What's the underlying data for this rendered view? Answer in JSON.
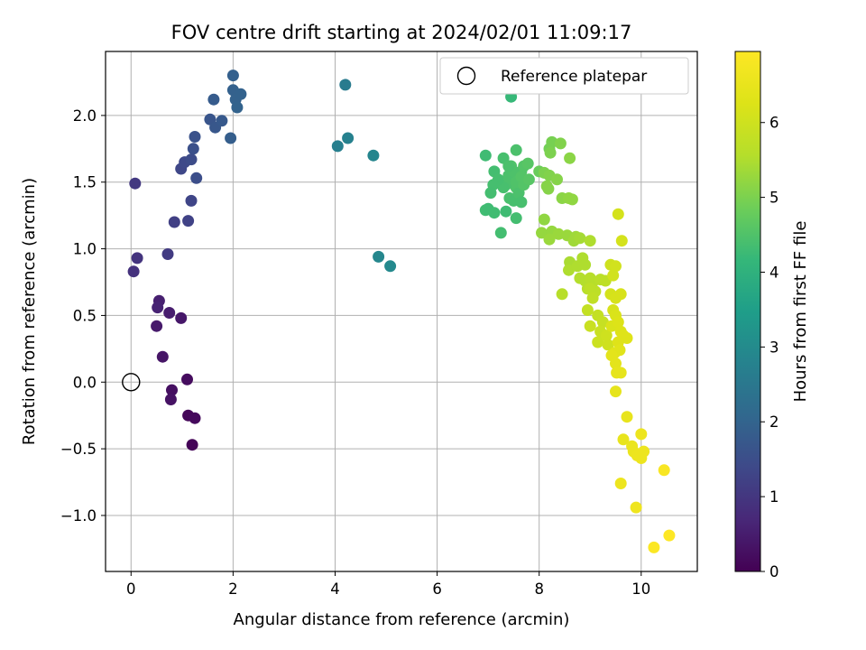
{
  "chart_data": {
    "type": "scatter",
    "title": "FOV centre drift starting at 2024/02/01 11:09:17",
    "xlabel": "Angular distance from reference (arcmin)",
    "ylabel": "Rotation from reference (arcmin)",
    "xlim": [
      -0.5,
      11.1
    ],
    "ylim": [
      -1.42,
      2.48
    ],
    "xticks": [
      0,
      2,
      4,
      6,
      8,
      10
    ],
    "xtick_labels": [
      "0",
      "2",
      "4",
      "6",
      "8",
      "10"
    ],
    "yticks": [
      -1.0,
      -0.5,
      0.0,
      0.5,
      1.0,
      1.5,
      2.0
    ],
    "ytick_labels": [
      "−1.0",
      "−0.5",
      "0.0",
      "0.5",
      "1.0",
      "1.5",
      "2.0"
    ],
    "grid": true,
    "legend": {
      "position": "top-right",
      "entries": [
        "Reference platepar"
      ]
    },
    "colorbar": {
      "label": "Hours from first FF file",
      "range": [
        0,
        6.95
      ],
      "ticks": [
        0,
        1,
        2,
        3,
        4,
        5,
        6
      ],
      "tick_labels": [
        "0",
        "1",
        "2",
        "3",
        "4",
        "5",
        "6"
      ],
      "colormap": "viridis"
    },
    "reference_point": {
      "x": 0,
      "y": 0
    },
    "series": [
      {
        "points": [
          [
            1.2,
            -0.47,
            0.05
          ],
          [
            1.12,
            -0.25,
            0.1
          ],
          [
            1.25,
            -0.27,
            0.15
          ],
          [
            1.1,
            0.02,
            0.2
          ],
          [
            0.8,
            -0.06,
            0.25
          ],
          [
            0.78,
            -0.13,
            0.3
          ],
          [
            0.62,
            0.19,
            0.35
          ],
          [
            0.98,
            0.48,
            0.4
          ],
          [
            0.5,
            0.42,
            0.45
          ],
          [
            0.75,
            0.52,
            0.5
          ],
          [
            0.55,
            0.61,
            0.55
          ],
          [
            0.52,
            0.56,
            0.6
          ],
          [
            0.05,
            0.83,
            0.9
          ],
          [
            0.12,
            0.93,
            0.95
          ],
          [
            0.08,
            1.49,
            1.05
          ],
          [
            0.72,
            0.96,
            1.1
          ],
          [
            0.85,
            1.2,
            1.2
          ],
          [
            1.12,
            1.21,
            1.25
          ],
          [
            1.18,
            1.36,
            1.3
          ],
          [
            0.98,
            1.6,
            1.35
          ],
          [
            1.05,
            1.65,
            1.4
          ],
          [
            1.18,
            1.67,
            1.45
          ],
          [
            1.28,
            1.53,
            1.5
          ],
          [
            1.22,
            1.75,
            1.55
          ],
          [
            1.25,
            1.84,
            1.6
          ],
          [
            1.55,
            1.97,
            1.65
          ],
          [
            1.65,
            1.91,
            1.7
          ],
          [
            1.78,
            1.96,
            1.75
          ],
          [
            1.62,
            2.12,
            1.8
          ],
          [
            1.95,
            1.83,
            1.85
          ],
          [
            2.0,
            2.3,
            1.9
          ],
          [
            2.0,
            2.19,
            1.92
          ],
          [
            2.05,
            2.12,
            1.94
          ],
          [
            2.15,
            2.16,
            1.96
          ],
          [
            2.08,
            2.06,
            1.98
          ],
          [
            4.2,
            2.23,
            2.6
          ],
          [
            4.05,
            1.77,
            2.7
          ],
          [
            4.25,
            1.83,
            2.75
          ],
          [
            4.75,
            1.7,
            2.85
          ],
          [
            4.85,
            0.94,
            2.9
          ],
          [
            5.08,
            0.87,
            2.95
          ],
          [
            7.45,
            2.14,
            4.2
          ],
          [
            6.95,
            1.7,
            4.3
          ],
          [
            7.12,
            1.58,
            4.35
          ],
          [
            7.3,
            1.68,
            4.4
          ],
          [
            7.55,
            1.74,
            4.45
          ],
          [
            7.45,
            1.62,
            4.5
          ],
          [
            7.6,
            1.55,
            4.5
          ],
          [
            7.5,
            1.52,
            4.48
          ],
          [
            7.65,
            1.58,
            4.52
          ],
          [
            7.7,
            1.62,
            4.55
          ],
          [
            7.78,
            1.64,
            4.6
          ],
          [
            7.55,
            1.46,
            4.5
          ],
          [
            7.35,
            1.48,
            4.45
          ],
          [
            7.42,
            1.38,
            4.42
          ],
          [
            7.5,
            1.36,
            4.4
          ],
          [
            7.6,
            1.42,
            4.45
          ],
          [
            7.65,
            1.35,
            4.4
          ],
          [
            7.55,
            1.23,
            4.35
          ],
          [
            7.35,
            1.28,
            4.3
          ],
          [
            7.3,
            1.46,
            4.4
          ],
          [
            7.2,
            1.52,
            4.38
          ],
          [
            7.1,
            1.48,
            4.38
          ],
          [
            7.05,
            1.42,
            4.36
          ],
          [
            6.95,
            1.29,
            4.32
          ],
          [
            7.0,
            1.3,
            4.3
          ],
          [
            7.12,
            1.27,
            4.32
          ],
          [
            7.25,
            1.12,
            4.35
          ],
          [
            7.4,
            1.55,
            4.45
          ],
          [
            7.5,
            1.58,
            4.48
          ],
          [
            7.55,
            1.5,
            4.5
          ],
          [
            7.7,
            1.48,
            4.55
          ],
          [
            7.65,
            1.54,
            4.55
          ],
          [
            7.8,
            1.52,
            4.6
          ],
          [
            7.4,
            1.62,
            4.45
          ],
          [
            8.0,
            1.58,
            4.8
          ],
          [
            8.2,
            1.75,
            4.9
          ],
          [
            8.25,
            1.8,
            4.95
          ],
          [
            8.22,
            1.72,
            5.0
          ],
          [
            8.42,
            1.79,
            5.05
          ],
          [
            8.1,
            1.57,
            5.0
          ],
          [
            8.2,
            1.55,
            5.05
          ],
          [
            8.35,
            1.52,
            5.1
          ],
          [
            8.15,
            1.47,
            5.1
          ],
          [
            8.18,
            1.45,
            5.1
          ],
          [
            8.6,
            1.68,
            5.15
          ],
          [
            8.45,
            1.38,
            5.15
          ],
          [
            8.58,
            1.38,
            5.2
          ],
          [
            8.65,
            1.37,
            5.2
          ],
          [
            8.1,
            1.22,
            5.2
          ],
          [
            8.05,
            1.12,
            5.25
          ],
          [
            8.25,
            1.13,
            5.25
          ],
          [
            8.38,
            1.11,
            5.3
          ],
          [
            8.2,
            1.07,
            5.3
          ],
          [
            8.55,
            1.1,
            5.3
          ],
          [
            8.68,
            1.06,
            5.35
          ],
          [
            8.72,
            1.09,
            5.35
          ],
          [
            8.8,
            1.08,
            5.4
          ],
          [
            9.0,
            1.06,
            5.5
          ],
          [
            8.6,
            0.9,
            5.45
          ],
          [
            8.62,
            0.87,
            5.45
          ],
          [
            8.58,
            0.84,
            5.5
          ],
          [
            8.75,
            0.87,
            5.5
          ],
          [
            8.85,
            0.93,
            5.5
          ],
          [
            8.9,
            0.88,
            5.5
          ],
          [
            8.8,
            0.78,
            5.55
          ],
          [
            8.9,
            0.76,
            5.55
          ],
          [
            9.0,
            0.78,
            5.6
          ],
          [
            9.05,
            0.75,
            5.6
          ],
          [
            8.95,
            0.7,
            5.6
          ],
          [
            9.2,
            0.77,
            5.65
          ],
          [
            9.3,
            0.76,
            5.7
          ],
          [
            9.1,
            0.68,
            5.7
          ],
          [
            9.0,
            0.7,
            5.7
          ],
          [
            8.45,
            0.66,
            5.6
          ],
          [
            9.05,
            0.63,
            5.75
          ],
          [
            8.95,
            0.54,
            5.8
          ],
          [
            9.15,
            0.5,
            5.8
          ],
          [
            9.25,
            0.45,
            5.85
          ],
          [
            9.0,
            0.42,
            5.9
          ],
          [
            9.2,
            0.38,
            5.9
          ],
          [
            9.15,
            0.3,
            5.95
          ],
          [
            9.35,
            0.28,
            6.0
          ],
          [
            9.32,
            0.35,
            6.0
          ],
          [
            9.4,
            0.88,
            6.0
          ],
          [
            9.5,
            0.87,
            6.05
          ],
          [
            9.45,
            0.8,
            6.05
          ],
          [
            9.55,
            1.26,
            6.1
          ],
          [
            9.62,
            1.06,
            6.1
          ],
          [
            9.4,
            0.66,
            6.1
          ],
          [
            9.5,
            0.63,
            6.15
          ],
          [
            9.6,
            0.66,
            6.15
          ],
          [
            9.45,
            0.54,
            6.15
          ],
          [
            9.5,
            0.5,
            6.2
          ],
          [
            9.42,
            0.42,
            6.2
          ],
          [
            9.55,
            0.45,
            6.25
          ],
          [
            9.6,
            0.38,
            6.25
          ],
          [
            9.65,
            0.35,
            6.3
          ],
          [
            9.72,
            0.33,
            6.3
          ],
          [
            9.55,
            0.3,
            6.3
          ],
          [
            9.48,
            0.22,
            6.35
          ],
          [
            9.58,
            0.24,
            6.35
          ],
          [
            9.42,
            0.2,
            6.4
          ],
          [
            9.5,
            0.14,
            6.4
          ],
          [
            9.52,
            0.07,
            6.45
          ],
          [
            9.6,
            0.07,
            6.45
          ],
          [
            9.5,
            -0.07,
            6.45
          ],
          [
            9.72,
            -0.26,
            6.5
          ],
          [
            9.65,
            -0.43,
            6.5
          ],
          [
            9.82,
            -0.48,
            6.55
          ],
          [
            9.85,
            -0.52,
            6.55
          ],
          [
            9.92,
            -0.55,
            6.6
          ],
          [
            10.0,
            -0.57,
            6.6
          ],
          [
            10.05,
            -0.52,
            6.6
          ],
          [
            10.0,
            -0.39,
            6.6
          ],
          [
            9.6,
            -0.76,
            6.6
          ],
          [
            9.9,
            -0.94,
            6.65
          ],
          [
            10.45,
            -0.66,
            6.85
          ],
          [
            10.25,
            -1.24,
            6.9
          ],
          [
            10.55,
            -1.15,
            6.95
          ]
        ]
      }
    ]
  }
}
